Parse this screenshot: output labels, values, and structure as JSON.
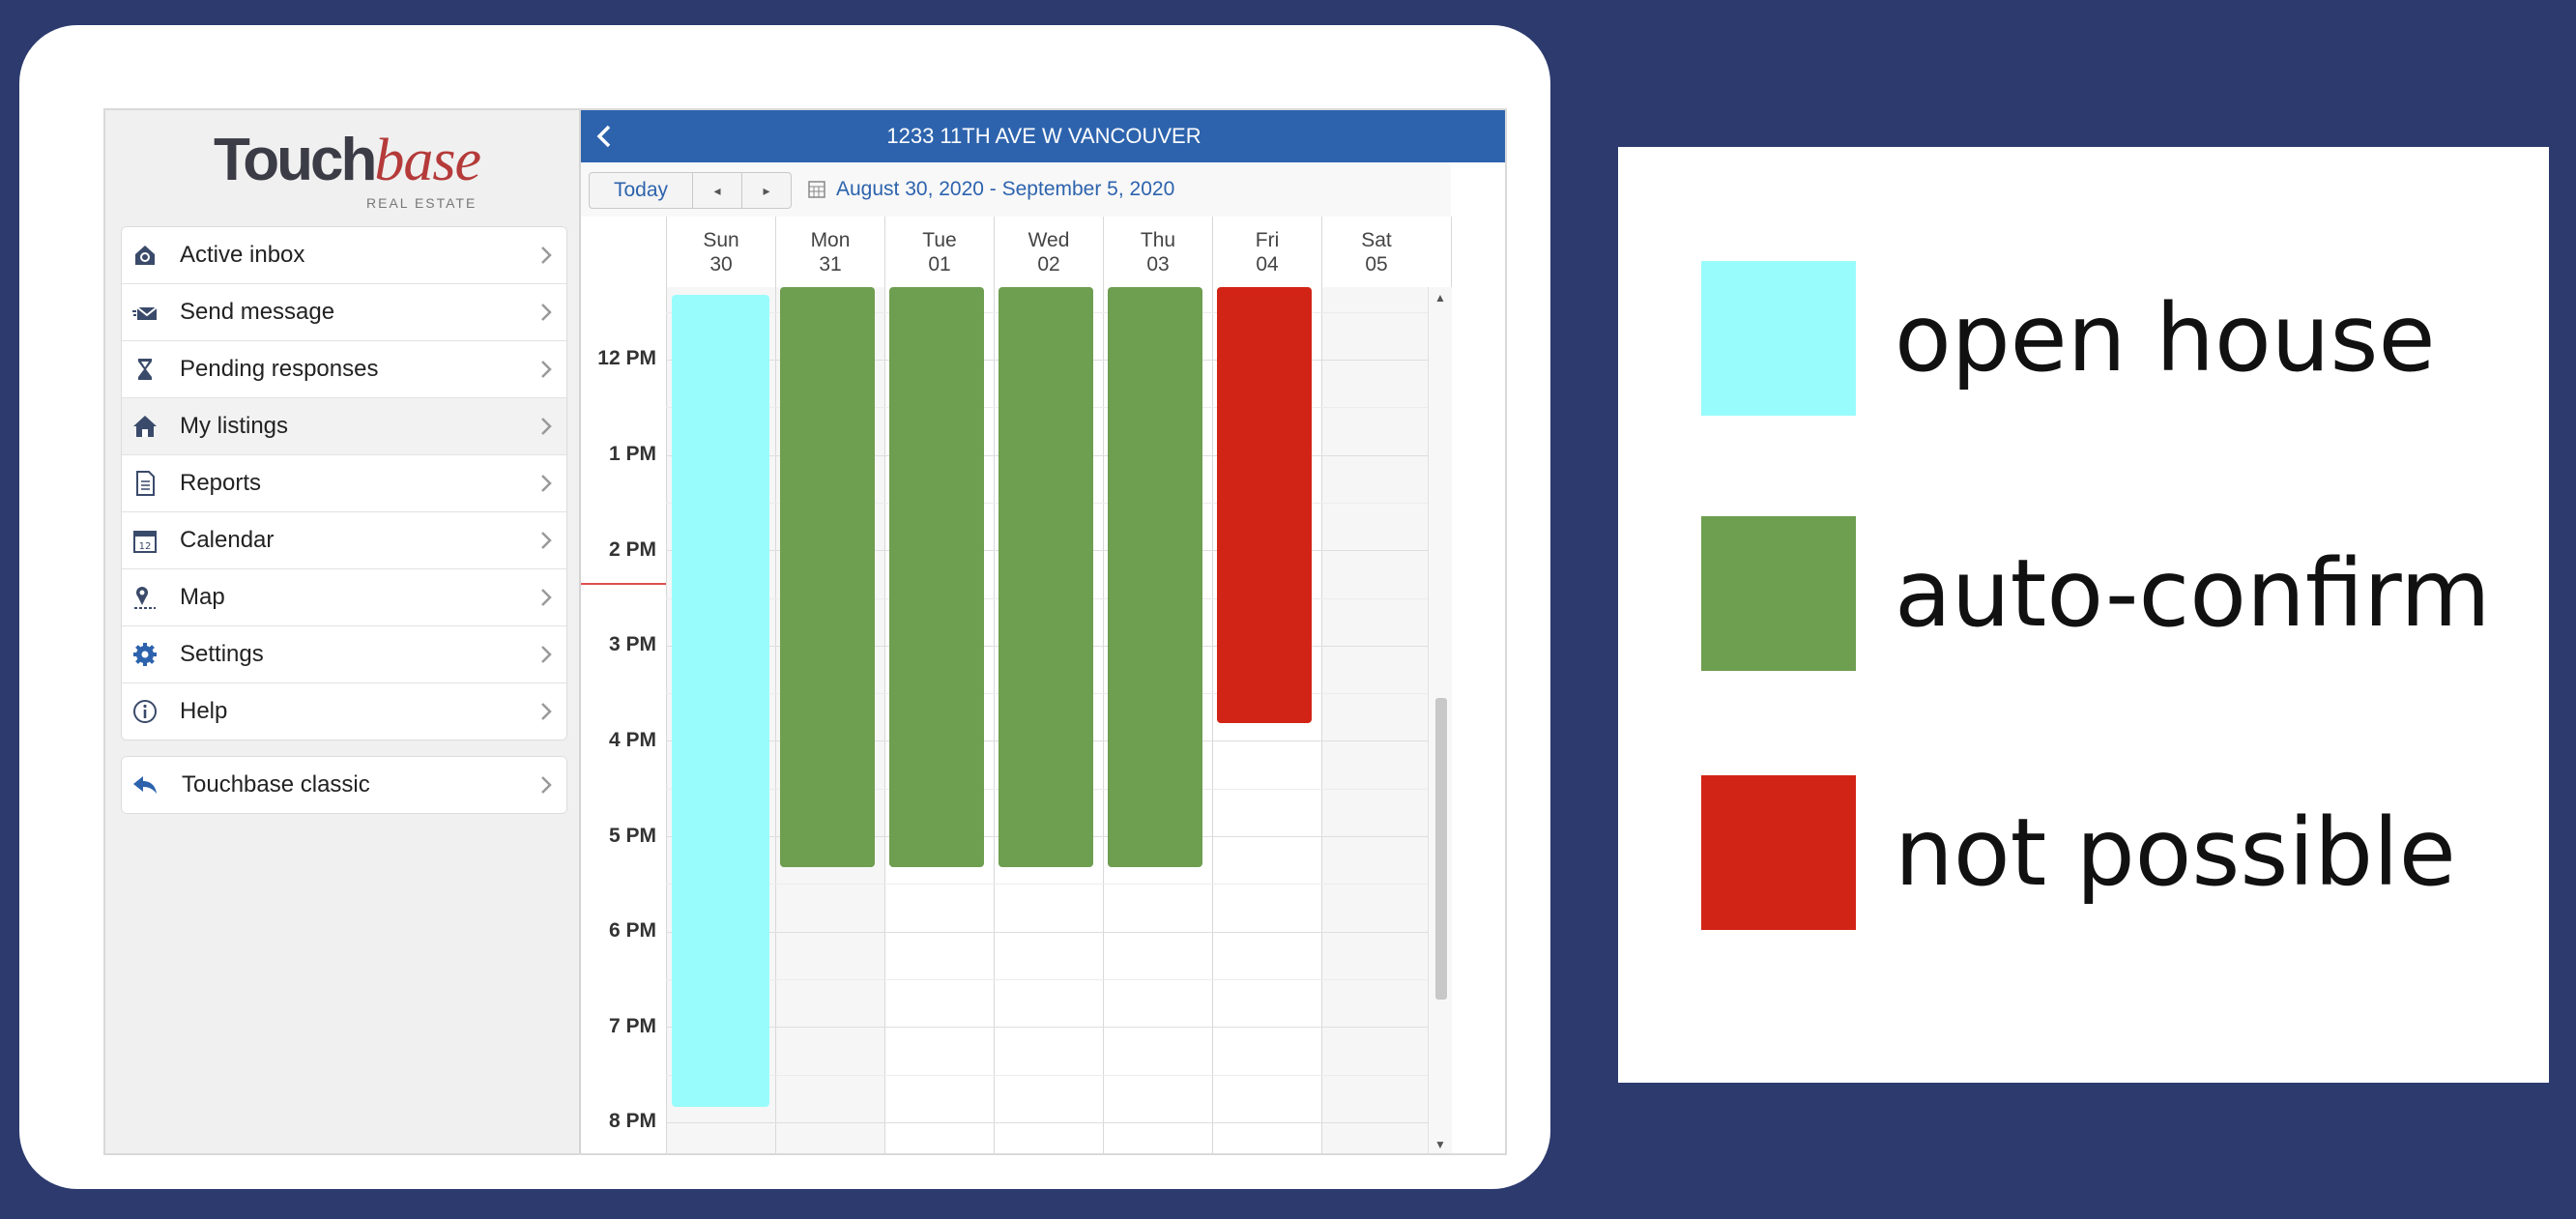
{
  "app": {
    "logo_main": "Touch",
    "logo_accent": "base",
    "logo_sub": "REAL ESTATE",
    "address": "1233 11TH AVE W VANCOUVER"
  },
  "sidebar": {
    "items": [
      {
        "label": "Active inbox",
        "icon": "inbox-icon"
      },
      {
        "label": "Send message",
        "icon": "envelope-icon"
      },
      {
        "label": "Pending responses",
        "icon": "hourglass-icon"
      },
      {
        "label": "My listings",
        "icon": "house-icon"
      },
      {
        "label": "Reports",
        "icon": "document-icon"
      },
      {
        "label": "Calendar",
        "icon": "calendar-icon"
      },
      {
        "label": "Map",
        "icon": "map-pin-icon"
      },
      {
        "label": "Settings",
        "icon": "gear-icon"
      },
      {
        "label": "Help",
        "icon": "info-icon"
      }
    ],
    "classic": {
      "label": "Touchbase classic",
      "icon": "reply-arrow-icon"
    }
  },
  "toolbar": {
    "today": "Today",
    "prev": "◂",
    "next": "▸",
    "range": "August 30, 2020 - September 5, 2020"
  },
  "calendar": {
    "days": [
      {
        "name": "Sun",
        "num": "30"
      },
      {
        "name": "Mon",
        "num": "31"
      },
      {
        "name": "Tue",
        "num": "01"
      },
      {
        "name": "Wed",
        "num": "02"
      },
      {
        "name": "Thu",
        "num": "03"
      },
      {
        "name": "Fri",
        "num": "04"
      },
      {
        "name": "Sat",
        "num": "05"
      }
    ],
    "times": [
      "12 PM",
      "1 PM",
      "2 PM",
      "3 PM",
      "4 PM",
      "5 PM",
      "6 PM",
      "7 PM",
      "8 PM"
    ],
    "colors": {
      "open_house": "#99fcfc",
      "auto_confirm": "#6e9e50",
      "not_possible": "#d22416"
    }
  },
  "legend": [
    {
      "label": "open house",
      "color": "#99fcfc"
    },
    {
      "label": "auto-confirm",
      "color": "#6e9e50"
    },
    {
      "label": "not possible",
      "color": "#d22416"
    }
  ]
}
